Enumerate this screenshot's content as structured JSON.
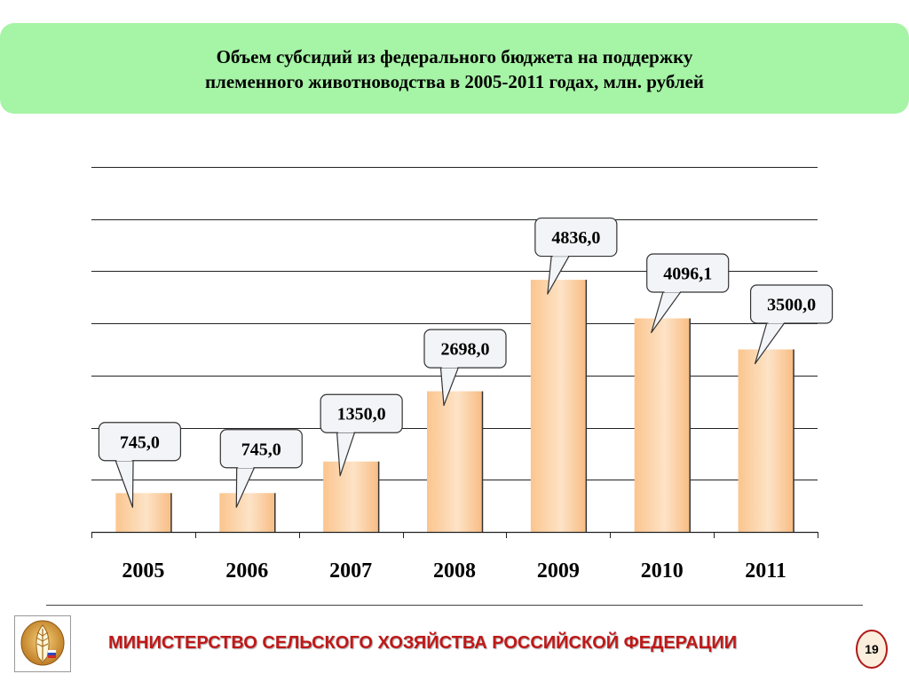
{
  "header": {
    "title_line1": "Объем субсидий из федерального бюджета на поддержку",
    "title_line2": "племенного животноводства в 2005-2011 годах, млн. рублей"
  },
  "chart_data": {
    "type": "bar",
    "title": "Объем субсидий из федерального бюджета на поддержку племенного животноводства в 2005-2011 годах, млн. рублей",
    "categories": [
      "2005",
      "2006",
      "2007",
      "2008",
      "2009",
      "2010",
      "2011"
    ],
    "values": [
      745.0,
      745.0,
      1350.0,
      2698.0,
      4836.0,
      4096.1,
      3500.0
    ],
    "data_labels": [
      "745,0",
      "745,0",
      "1350,0",
      "2698,0",
      "4836,0",
      "4096,1",
      "3500,0"
    ],
    "ylim": [
      0,
      7000
    ],
    "grid": true,
    "legend": "none",
    "colors": {
      "bar": "#fbd0a4",
      "bar_edge": "#333333",
      "callout_fill": "#f2f4f7",
      "callout_border": "#333333"
    }
  },
  "footer": {
    "ministry": "МИНИСТЕРСТВО СЕЛЬСКОГО ХОЗЯЙСТВА РОССИЙСКОЙ ФЕДЕРАЦИИ",
    "page_number": "19",
    "logo_icon": "ministry-emblem-icon"
  }
}
